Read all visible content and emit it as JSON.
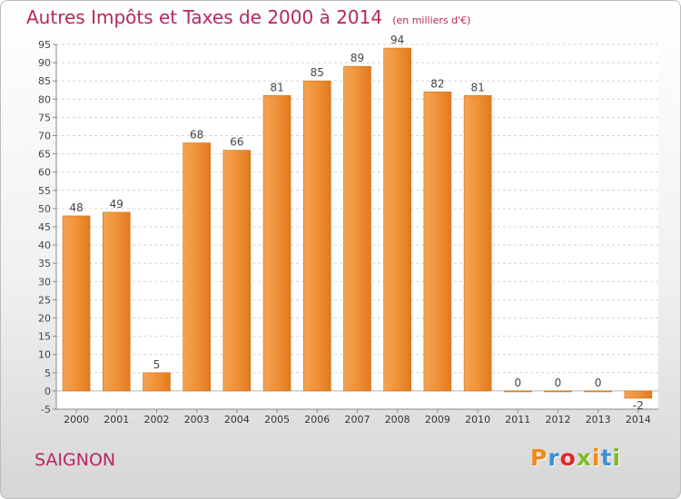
{
  "title": "Autres Impôts et Taxes de 2000 à 2014",
  "subtitle": "(en milliers d'€)",
  "commune": "SAIGNON",
  "logo": {
    "letters": [
      "P",
      "r",
      "o",
      "x",
      "i",
      "t",
      "i"
    ],
    "colors": [
      "#f08a1c",
      "#3b8fd8",
      "#e8262a",
      "#7dbb2a",
      "#f08a1c",
      "#3b8fd8",
      "#7dbb2a"
    ]
  },
  "chart_data": {
    "type": "bar",
    "title": "Autres Impôts et Taxes de 2000 à 2014",
    "subtitle": "(en milliers d'€)",
    "categories": [
      "2000",
      "2001",
      "2002",
      "2003",
      "2004",
      "2005",
      "2006",
      "2007",
      "2008",
      "2009",
      "2010",
      "2011",
      "2012",
      "2013",
      "2014"
    ],
    "values": [
      48,
      49,
      5,
      68,
      66,
      81,
      85,
      89,
      94,
      82,
      81,
      0,
      0,
      0,
      -2
    ],
    "ylim": [
      -5,
      95
    ],
    "yticks": [
      -5,
      0,
      5,
      10,
      15,
      20,
      25,
      30,
      35,
      40,
      45,
      50,
      55,
      60,
      65,
      70,
      75,
      80,
      85,
      90,
      95
    ],
    "grid": true,
    "bar_color": "#e97f1f"
  }
}
